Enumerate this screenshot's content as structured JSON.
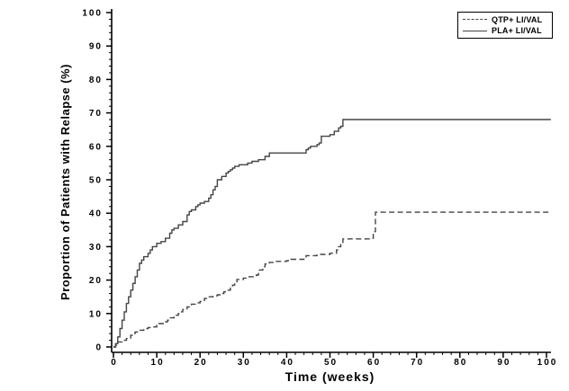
{
  "figure": {
    "background_color": "#ffffff",
    "axis_color": "#000000",
    "curve_color": "#444444"
  },
  "chart_data": {
    "type": "line",
    "subtype": "step-kaplan-meier",
    "title": "",
    "xlabel": "Time (weeks)",
    "ylabel": "Proportion of Patients with Relapse (%)",
    "xlim": [
      0,
      100
    ],
    "ylim": [
      0,
      100
    ],
    "x_major_ticks": [
      0,
      10,
      20,
      30,
      40,
      50,
      60,
      70,
      80,
      90,
      100
    ],
    "y_major_ticks": [
      0,
      10,
      20,
      30,
      40,
      50,
      60,
      70,
      80,
      90,
      100
    ],
    "minor_tick_step": 2,
    "grid": false,
    "legend_position": "top-right",
    "series": [
      {
        "name": "QTP+ LI/VAL",
        "line_style": "dashed",
        "color": "#444444",
        "points": [
          [
            0,
            0
          ],
          [
            0.5,
            0.5
          ],
          [
            1,
            1.5
          ],
          [
            2,
            2
          ],
          [
            3,
            2.5
          ],
          [
            4,
            3.5
          ],
          [
            4.5,
            4
          ],
          [
            5,
            4.5
          ],
          [
            6,
            5
          ],
          [
            7,
            5.5
          ],
          [
            8,
            5.8
          ],
          [
            9,
            6
          ],
          [
            10,
            6.5
          ],
          [
            10.5,
            7
          ],
          [
            12,
            7.5
          ],
          [
            12.5,
            8
          ],
          [
            13,
            8.7
          ],
          [
            14,
            9.5
          ],
          [
            15,
            10
          ],
          [
            15.5,
            10.5
          ],
          [
            16,
            11.2
          ],
          [
            17,
            12
          ],
          [
            18,
            12.8
          ],
          [
            19,
            13.2
          ],
          [
            20,
            13.6
          ],
          [
            21,
            14.5
          ],
          [
            21.5,
            15
          ],
          [
            23,
            15.3
          ],
          [
            24,
            15.6
          ],
          [
            25,
            16
          ],
          [
            25.5,
            16.5
          ],
          [
            26,
            17
          ],
          [
            27,
            18
          ],
          [
            27.5,
            18.5
          ],
          [
            28,
            19.5
          ],
          [
            28.5,
            20.2
          ],
          [
            30,
            20.6
          ],
          [
            31,
            21
          ],
          [
            33,
            21.5
          ],
          [
            33.5,
            23
          ],
          [
            34.5,
            24
          ],
          [
            35,
            24.8
          ],
          [
            36,
            25.3
          ],
          [
            37,
            25.6
          ],
          [
            40,
            25.8
          ],
          [
            41,
            26.2
          ],
          [
            44,
            26.5
          ],
          [
            44.5,
            27.3
          ],
          [
            47,
            27.7
          ],
          [
            50,
            28
          ],
          [
            51.5,
            29
          ],
          [
            52,
            30
          ],
          [
            52.5,
            31
          ],
          [
            53,
            32.3
          ],
          [
            59.5,
            32.5
          ],
          [
            60,
            34.5
          ],
          [
            60.5,
            40.3
          ],
          [
            101,
            40.3
          ]
        ]
      },
      {
        "name": "PLA+ LI/VAL",
        "line_style": "solid",
        "color": "#444444",
        "points": [
          [
            0,
            0
          ],
          [
            0.5,
            1
          ],
          [
            1,
            3
          ],
          [
            1.5,
            5.5
          ],
          [
            2,
            8
          ],
          [
            2.5,
            10.5
          ],
          [
            3,
            13
          ],
          [
            3.5,
            15
          ],
          [
            4,
            17
          ],
          [
            4.5,
            19
          ],
          [
            5,
            21
          ],
          [
            5.5,
            23
          ],
          [
            6,
            25
          ],
          [
            6.5,
            26
          ],
          [
            7,
            27
          ],
          [
            8,
            28
          ],
          [
            8.5,
            29
          ],
          [
            9,
            30
          ],
          [
            10,
            31
          ],
          [
            11,
            31.5
          ],
          [
            12,
            32.5
          ],
          [
            13,
            34
          ],
          [
            13.5,
            35
          ],
          [
            14,
            35.5
          ],
          [
            15,
            36.5
          ],
          [
            16,
            37.5
          ],
          [
            17,
            39.5
          ],
          [
            17.5,
            40.5
          ],
          [
            18,
            41
          ],
          [
            19,
            42
          ],
          [
            19.5,
            42.5
          ],
          [
            20,
            43
          ],
          [
            21,
            43.5
          ],
          [
            22,
            44.5
          ],
          [
            22.5,
            45.5
          ],
          [
            23,
            47
          ],
          [
            23.5,
            48
          ],
          [
            24,
            50
          ],
          [
            25,
            51
          ],
          [
            26,
            52
          ],
          [
            26.5,
            52.5
          ],
          [
            27,
            53
          ],
          [
            27.5,
            53.5
          ],
          [
            28,
            54
          ],
          [
            29,
            54.5
          ],
          [
            31,
            55
          ],
          [
            32,
            55.5
          ],
          [
            33.5,
            56
          ],
          [
            35,
            57
          ],
          [
            36,
            58
          ],
          [
            44,
            58
          ],
          [
            44.5,
            59
          ],
          [
            45,
            59.5
          ],
          [
            45.5,
            60
          ],
          [
            47,
            60.5
          ],
          [
            47.5,
            61
          ],
          [
            48,
            63
          ],
          [
            50,
            63.5
          ],
          [
            51,
            64.5
          ],
          [
            52,
            65.5
          ],
          [
            52.5,
            66
          ],
          [
            53,
            68
          ],
          [
            101,
            68
          ]
        ]
      }
    ]
  }
}
